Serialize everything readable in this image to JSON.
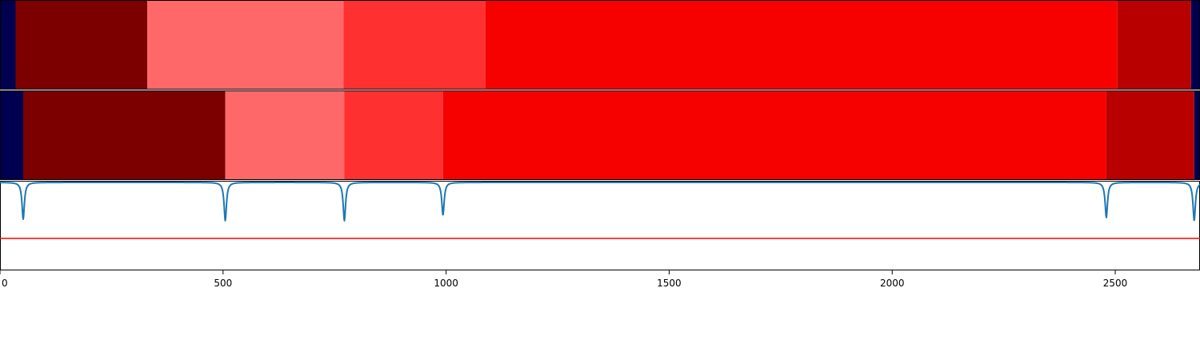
{
  "chart_data": {
    "type": "heatmap",
    "title": "",
    "xlabel": "",
    "ylabel": "",
    "xlim": [
      0,
      2690
    ],
    "grid": false,
    "legend": "none",
    "colors": {
      "navy": "#000050",
      "dark_red": "#7c0000",
      "salmon": "#ff6868",
      "light_red": "#ff3030",
      "red": "#f70000",
      "crimson": "#b90000",
      "trace": "#1f77b4",
      "threshold": "#ff0000"
    },
    "rows": [
      {
        "segments": [
          {
            "start": 0,
            "end": 35,
            "color": "navy"
          },
          {
            "start": 35,
            "end": 330,
            "color": "dark_red"
          },
          {
            "start": 330,
            "end": 770,
            "color": "salmon"
          },
          {
            "start": 770,
            "end": 1088,
            "color": "light_red"
          },
          {
            "start": 1088,
            "end": 2505,
            "color": "red"
          },
          {
            "start": 2505,
            "end": 2670,
            "color": "crimson"
          },
          {
            "start": 2670,
            "end": 2690,
            "color": "navy"
          }
        ]
      },
      {
        "segments": [
          {
            "start": 0,
            "end": 52,
            "color": "navy"
          },
          {
            "start": 52,
            "end": 505,
            "color": "dark_red"
          },
          {
            "start": 505,
            "end": 772,
            "color": "salmon"
          },
          {
            "start": 772,
            "end": 993,
            "color": "light_red"
          },
          {
            "start": 993,
            "end": 2480,
            "color": "red"
          },
          {
            "start": 2480,
            "end": 2677,
            "color": "crimson"
          },
          {
            "start": 2677,
            "end": 2690,
            "color": "navy"
          }
        ]
      }
    ],
    "trace": {
      "baseline": 0,
      "ylim": [
        -1.1,
        0.02
      ],
      "threshold": -0.7,
      "dips": [
        {
          "x": 52,
          "depth": 0.46
        },
        {
          "x": 505,
          "depth": 0.48
        },
        {
          "x": 772,
          "depth": 0.48
        },
        {
          "x": 993,
          "depth": 0.41
        },
        {
          "x": 2480,
          "depth": 0.44
        },
        {
          "x": 2677,
          "depth": 0.48
        }
      ]
    },
    "x_ticks": [
      0,
      500,
      1000,
      1500,
      2000,
      2500
    ],
    "x_tick_labels": [
      "0",
      "500",
      "1000",
      "1500",
      "2000",
      "2500"
    ]
  }
}
